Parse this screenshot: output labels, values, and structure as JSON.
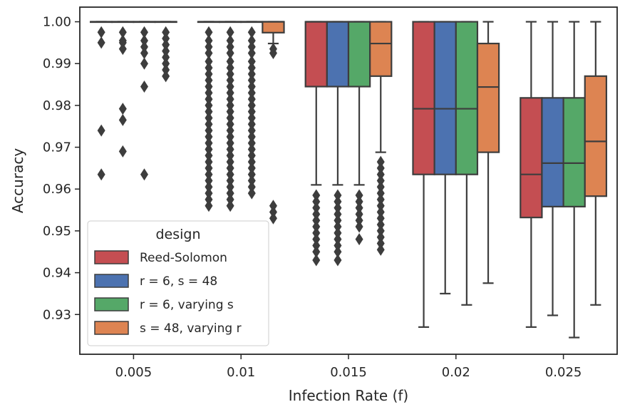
{
  "chart_data": {
    "type": "box",
    "xlabel": "Infection Rate (f)",
    "ylabel": "Accuracy",
    "ylim": [
      0.9205,
      1.0035
    ],
    "yticks": [
      "0.93",
      "0.94",
      "0.95",
      "0.96",
      "0.97",
      "0.98",
      "0.99",
      "1.00"
    ],
    "categories": [
      "0.005",
      "0.01",
      "0.015",
      "0.02",
      "0.025"
    ],
    "legend": {
      "title": "design",
      "placement": "lower-left"
    },
    "grid": false,
    "series": [
      {
        "name": "Reed-Solomon",
        "color": "#c44e52",
        "boxes": [
          {
            "q1": 1.0,
            "median": 1.0,
            "q3": 1.0,
            "wlo": 1.0,
            "whi": 1.0,
            "fliers": [
              0.9975,
              0.995,
              0.974,
              0.9635
            ]
          },
          {
            "q1": 1.0,
            "median": 1.0,
            "q3": 1.0,
            "wlo": 1.0,
            "whi": 1.0,
            "fliers": [
              0.9975,
              0.9955,
              0.994,
              0.9925,
              0.9905,
              0.989,
              0.9875,
              0.986,
              0.9845,
              0.983,
              0.9815,
              0.98,
              0.9785,
              0.977,
              0.9755,
              0.974,
              0.9725,
              0.971,
              0.9695,
              0.968,
              0.9665,
              0.965,
              0.9635,
              0.962,
              0.9605,
              0.959,
              0.9575,
              0.956
            ]
          },
          {
            "q1": 0.9845,
            "median": 1.0,
            "q3": 1.0,
            "wlo": 0.961,
            "whi": 1.0,
            "fliers": [
              0.9585,
              0.957,
              0.9555,
              0.954,
              0.9525,
              0.951,
              0.9495,
              0.948,
              0.9465,
              0.945,
              0.943
            ]
          },
          {
            "q1": 0.9635,
            "median": 0.9792,
            "q3": 1.0,
            "wlo": 0.927,
            "whi": 1.0,
            "fliers": []
          },
          {
            "q1": 0.9532,
            "median": 0.9635,
            "q3": 0.9818,
            "wlo": 0.927,
            "whi": 1.0,
            "fliers": []
          }
        ]
      },
      {
        "name": "r = 6, s = 48",
        "color": "#4c72b0",
        "boxes": [
          {
            "q1": 1.0,
            "median": 1.0,
            "q3": 1.0,
            "wlo": 1.0,
            "whi": 1.0,
            "fliers": [
              0.9975,
              0.9955,
              0.995,
              0.9935,
              0.9792,
              0.9765,
              0.969
            ]
          },
          {
            "q1": 1.0,
            "median": 1.0,
            "q3": 1.0,
            "wlo": 1.0,
            "whi": 1.0,
            "fliers": [
              0.9975,
              0.9955,
              0.994,
              0.9925,
              0.9905,
              0.989,
              0.9875,
              0.986,
              0.9845,
              0.983,
              0.9815,
              0.98,
              0.9785,
              0.977,
              0.9755,
              0.974,
              0.9725,
              0.971,
              0.9695,
              0.968,
              0.9665,
              0.965,
              0.9635,
              0.962,
              0.9605,
              0.959,
              0.9575,
              0.956
            ]
          },
          {
            "q1": 0.9845,
            "median": 1.0,
            "q3": 1.0,
            "wlo": 0.961,
            "whi": 1.0,
            "fliers": [
              0.9585,
              0.957,
              0.9555,
              0.954,
              0.9525,
              0.951,
              0.9495,
              0.948,
              0.9465,
              0.945,
              0.943
            ]
          },
          {
            "q1": 0.9635,
            "median": 0.9792,
            "q3": 1.0,
            "wlo": 0.935,
            "whi": 1.0,
            "fliers": []
          },
          {
            "q1": 0.9558,
            "median": 0.9662,
            "q3": 0.9818,
            "wlo": 0.9298,
            "whi": 1.0,
            "fliers": []
          }
        ]
      },
      {
        "name": "r = 6, varying s",
        "color": "#55a868",
        "boxes": [
          {
            "q1": 1.0,
            "median": 1.0,
            "q3": 1.0,
            "wlo": 1.0,
            "whi": 1.0,
            "fliers": [
              0.9975,
              0.9955,
              0.994,
              0.9925,
              0.99,
              0.9845,
              0.9635
            ]
          },
          {
            "q1": 1.0,
            "median": 1.0,
            "q3": 1.0,
            "wlo": 1.0,
            "whi": 1.0,
            "fliers": [
              0.9975,
              0.9955,
              0.994,
              0.9925,
              0.9905,
              0.989,
              0.9875,
              0.986,
              0.9845,
              0.983,
              0.9815,
              0.98,
              0.9785,
              0.977,
              0.9755,
              0.974,
              0.9725,
              0.971,
              0.9695,
              0.968,
              0.9665,
              0.965,
              0.9635,
              0.962,
              0.9605,
              0.959
            ]
          },
          {
            "q1": 0.9845,
            "median": 1.0,
            "q3": 1.0,
            "wlo": 0.961,
            "whi": 1.0,
            "fliers": [
              0.9585,
              0.957,
              0.9555,
              0.954,
              0.9525,
              0.951,
              0.948
            ]
          },
          {
            "q1": 0.9635,
            "median": 0.9792,
            "q3": 1.0,
            "wlo": 0.9323,
            "whi": 1.0,
            "fliers": []
          },
          {
            "q1": 0.9558,
            "median": 0.9662,
            "q3": 0.9818,
            "wlo": 0.9245,
            "whi": 1.0,
            "fliers": []
          }
        ]
      },
      {
        "name": "s = 48, varying r",
        "color": "#dd8452",
        "boxes": [
          {
            "q1": 1.0,
            "median": 1.0,
            "q3": 1.0,
            "wlo": 1.0,
            "whi": 1.0,
            "fliers": [
              0.9975,
              0.996,
              0.9945,
              0.993,
              0.9915,
              0.99,
              0.9885,
              0.987
            ]
          },
          {
            "q1": 0.9974,
            "median": 1.0,
            "q3": 1.0,
            "wlo": 0.9948,
            "whi": 1.0,
            "fliers": [
              0.9935,
              0.9925,
              0.956,
              0.9545,
              0.953
            ]
          },
          {
            "q1": 0.987,
            "median": 0.9948,
            "q3": 1.0,
            "wlo": 0.9688,
            "whi": 1.0,
            "fliers": [
              0.9665,
              0.965,
              0.9635,
              0.962,
              0.9605,
              0.959,
              0.9575,
              0.956,
              0.9545,
              0.953,
              0.9515,
              0.95,
              0.9485,
              0.947,
              0.9455
            ]
          },
          {
            "q1": 0.9688,
            "median": 0.9844,
            "q3": 0.9948,
            "wlo": 0.9375,
            "whi": 1.0,
            "fliers": []
          },
          {
            "q1": 0.9583,
            "median": 0.9714,
            "q3": 0.987,
            "wlo": 0.9323,
            "whi": 1.0,
            "fliers": []
          }
        ]
      }
    ]
  }
}
